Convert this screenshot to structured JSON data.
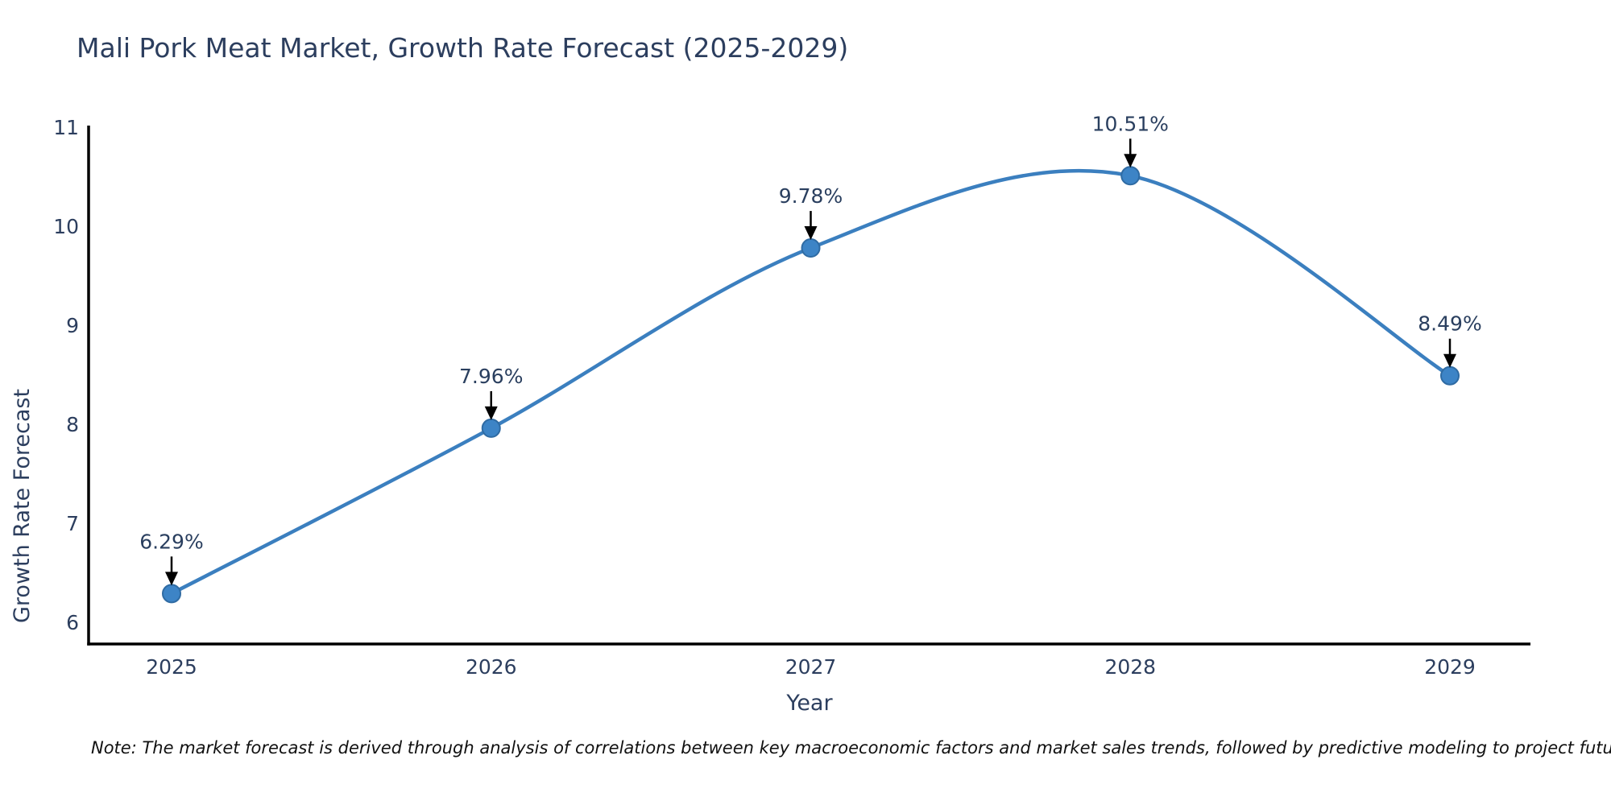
{
  "note": "Note: The market forecast is derived through analysis of correlations between key macroeconomic factors and market sales trends, followed by predictive modeling to project future sales.",
  "chart_data": {
    "type": "line",
    "title": "Mali Pork Meat Market, Growth Rate Forecast (2025-2029)",
    "xlabel": "Year",
    "ylabel": "Growth Rate Forecast",
    "x": [
      2025,
      2026,
      2027,
      2028,
      2029
    ],
    "series": [
      {
        "name": "Growth Rate Forecast",
        "values": [
          6.29,
          7.96,
          9.78,
          10.51,
          8.49
        ],
        "point_labels": [
          "6.29%",
          "7.96%",
          "9.78%",
          "10.51%",
          "8.49%"
        ]
      }
    ],
    "yticks": [
      6,
      7,
      8,
      9,
      10,
      11
    ],
    "ylim": [
      5.78,
      11
    ],
    "grid": false,
    "legend_position": "none",
    "smooth_curve": true,
    "colors": {
      "line": "#3b7fbf",
      "marker_fill": "#3d84c6",
      "marker_edge": "#2f6ba3",
      "axis_spine": "#000000",
      "tick_text": "#2c3e5e",
      "annotation_text": "#2a3f5f",
      "annotation_arrow": "#000000",
      "title_text": "#2c3e5e",
      "background": "#ffffff"
    }
  }
}
